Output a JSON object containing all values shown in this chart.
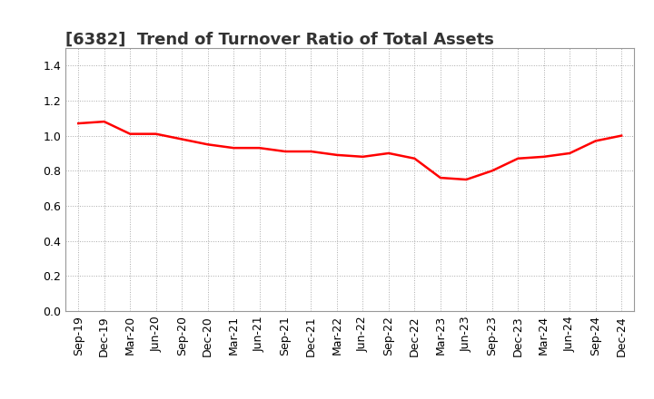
{
  "title": "[6382]  Trend of Turnover Ratio of Total Assets",
  "x_labels": [
    "Sep-19",
    "Dec-19",
    "Mar-20",
    "Jun-20",
    "Sep-20",
    "Dec-20",
    "Mar-21",
    "Jun-21",
    "Sep-21",
    "Dec-21",
    "Mar-22",
    "Jun-22",
    "Sep-22",
    "Dec-22",
    "Mar-23",
    "Jun-23",
    "Sep-23",
    "Dec-23",
    "Mar-24",
    "Jun-24",
    "Sep-24",
    "Dec-24"
  ],
  "y_values": [
    1.07,
    1.08,
    1.01,
    1.01,
    0.98,
    0.95,
    0.93,
    0.93,
    0.91,
    0.91,
    0.89,
    0.88,
    0.9,
    0.87,
    0.76,
    0.75,
    0.8,
    0.87,
    0.88,
    0.9,
    0.97,
    1.0
  ],
  "line_color": "#ff0000",
  "line_width": 1.8,
  "ylim": [
    0.0,
    1.5
  ],
  "yticks": [
    0.0,
    0.2,
    0.4,
    0.6,
    0.8,
    1.0,
    1.2,
    1.4
  ],
  "grid_color": "#aaaaaa",
  "background_color": "#ffffff",
  "title_fontsize": 13,
  "tick_fontsize": 9,
  "title_color": "#333333"
}
